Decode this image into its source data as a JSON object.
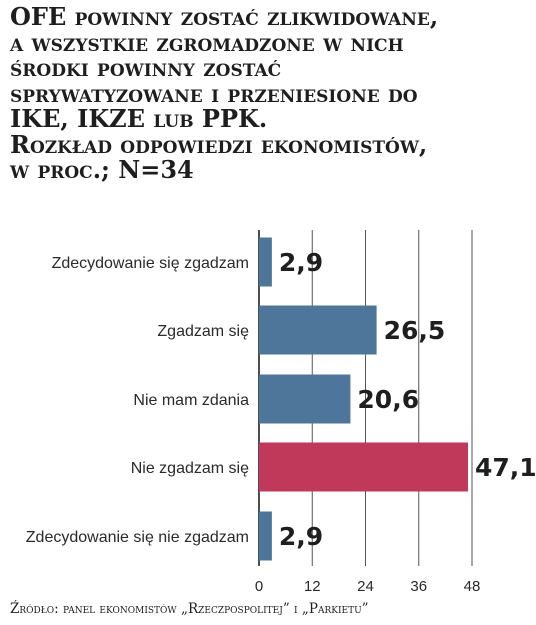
{
  "title_lines": [
    "OFE powinny zostać zlikwidowane,",
    "a wszystkie zgromadzone w nich",
    "środki powinny zostać",
    "sprywatyzowane i przeniesione do",
    "IKE, IKZE lub PPK.",
    "Rozkład odpowiedzi ekonomistów,",
    "w proc.; N=34"
  ],
  "source": "Źródło: panel ekonomistów „Rzeczpospolitej” i „Parkietu”",
  "chart_data": {
    "type": "bar",
    "orientation": "horizontal",
    "categories": [
      "Zdecydowanie się zgadzam",
      "Zgadzam się",
      "Nie mam zdania",
      "Nie zgadzam się",
      "Zdecydowanie się nie zgadzam"
    ],
    "values": [
      2.9,
      26.5,
      20.6,
      47.1,
      2.9
    ],
    "value_labels": [
      "2,9",
      "26,5",
      "20,6",
      "47,1",
      "2,9"
    ],
    "xlim": [
      0,
      48
    ],
    "xticks": [
      0,
      12,
      24,
      36,
      48
    ],
    "grid": true,
    "colors": [
      "#4e769a",
      "#4e769a",
      "#4e769a",
      "#c0395b",
      "#4e769a"
    ],
    "title": "OFE powinny zostać zlikwidowane, a wszystkie zgromadzone w nich środki powinny zostać sprywatyzowane i przeniesione do IKE, IKZE lub PPK. Rozkład odpowiedzi ekonomistów, w proc.; N=34",
    "xlabel": "",
    "ylabel": ""
  }
}
